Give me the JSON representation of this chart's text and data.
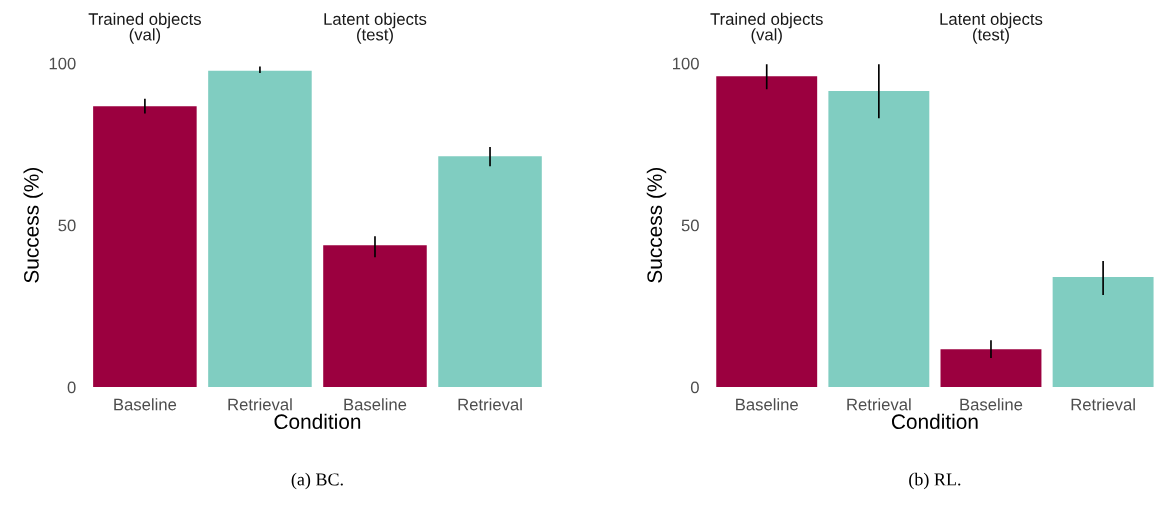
{
  "chart_data": [
    {
      "type": "bar",
      "xlabel": "Condition",
      "ylabel": "Success (%)",
      "categories": [
        "Baseline",
        "Retrieval",
        "Baseline",
        "Retrieval"
      ],
      "values": [
        86.7,
        97.7,
        43.8,
        71.3
      ],
      "errors": [
        [
          84.5,
          89
        ],
        [
          97,
          99
        ],
        [
          40.1,
          46.6
        ],
        [
          68.2,
          74.1
        ]
      ],
      "colors": [
        "#9b003f",
        "#80cdc1",
        "#9b003f",
        "#80cdc1"
      ],
      "ylim": [
        0,
        100
      ],
      "yticks": [
        0,
        50,
        100
      ],
      "grid": false,
      "annotations": [
        "Trained objects\n(val)",
        "Latent objects\n(test)",
        "(a) BC."
      ]
    },
    {
      "type": "bar",
      "xlabel": "Condition",
      "ylabel": "Success (%)",
      "categories": [
        "Baseline",
        "Retrieval",
        "Baseline",
        "Retrieval"
      ],
      "values": [
        96,
        91.4,
        11.7,
        34
      ],
      "errors": [
        [
          92,
          99.7
        ],
        [
          83,
          99.7
        ],
        [
          9,
          14.5
        ],
        [
          28.4,
          38.9
        ]
      ],
      "colors": [
        "#9b003f",
        "#80cdc1",
        "#9b003f",
        "#80cdc1"
      ],
      "ylim": [
        0,
        100
      ],
      "yticks": [
        0,
        50,
        100
      ],
      "grid": false,
      "annotations": [
        "Trained objects\n(val)",
        "Latent objects\n(test)",
        "(b) RL."
      ]
    }
  ]
}
